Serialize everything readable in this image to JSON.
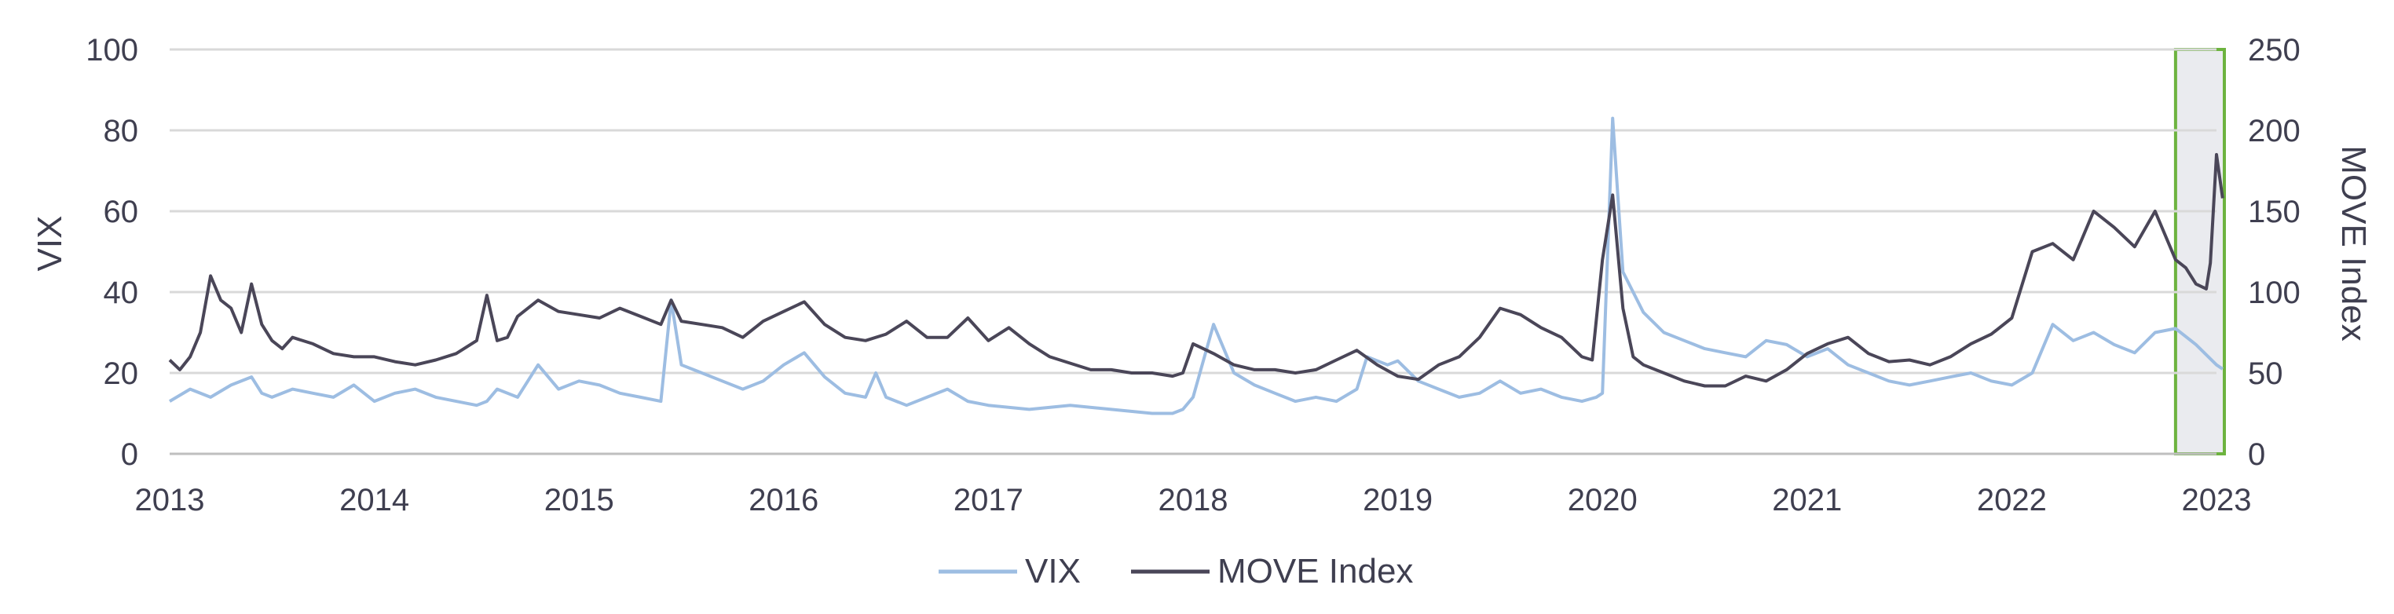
{
  "chart_data": {
    "type": "line",
    "title": "",
    "xlabel": "",
    "ylabel": "VIX",
    "y2label": "MOVE Index",
    "xlim": [
      2013,
      2023
    ],
    "ylim": [
      0,
      100
    ],
    "y2lim": [
      0,
      250
    ],
    "x_ticks": [
      "2013",
      "2014",
      "2015",
      "2016",
      "2017",
      "2018",
      "2019",
      "2020",
      "2021",
      "2022",
      "2023"
    ],
    "y_ticks": [
      "0",
      "20",
      "40",
      "60",
      "80",
      "100"
    ],
    "y2_ticks": [
      "0",
      "50",
      "100",
      "150",
      "200",
      "250"
    ],
    "grid": true,
    "legend_position": "bottom",
    "highlight": {
      "from": 2022.8,
      "to": 2023.05,
      "fill": "#eaebef",
      "stroke": "#6db33f"
    },
    "series": [
      {
        "name": "VIX",
        "axis": "left",
        "color": "#9dbde2",
        "x": [
          2013.0,
          2013.1,
          2013.2,
          2013.3,
          2013.4,
          2013.45,
          2013.5,
          2013.6,
          2013.7,
          2013.8,
          2013.9,
          2014.0,
          2014.1,
          2014.2,
          2014.3,
          2014.4,
          2014.5,
          2014.55,
          2014.6,
          2014.7,
          2014.8,
          2014.9,
          2015.0,
          2015.1,
          2015.2,
          2015.3,
          2015.4,
          2015.45,
          2015.5,
          2015.6,
          2015.7,
          2015.8,
          2015.9,
          2016.0,
          2016.1,
          2016.2,
          2016.3,
          2016.4,
          2016.45,
          2016.5,
          2016.6,
          2016.7,
          2016.8,
          2016.9,
          2017.0,
          2017.2,
          2017.4,
          2017.6,
          2017.8,
          2017.9,
          2017.95,
          2018.0,
          2018.1,
          2018.2,
          2018.3,
          2018.4,
          2018.5,
          2018.6,
          2018.7,
          2018.8,
          2018.85,
          2018.95,
          2019.0,
          2019.1,
          2019.2,
          2019.3,
          2019.4,
          2019.5,
          2019.6,
          2019.7,
          2019.8,
          2019.9,
          2019.97,
          2020.0,
          2020.05,
          2020.1,
          2020.2,
          2020.3,
          2020.4,
          2020.5,
          2020.6,
          2020.7,
          2020.8,
          2020.9,
          2021.0,
          2021.1,
          2021.2,
          2021.3,
          2021.4,
          2021.5,
          2021.6,
          2021.7,
          2021.8,
          2021.9,
          2022.0,
          2022.1,
          2022.2,
          2022.3,
          2022.4,
          2022.5,
          2022.6,
          2022.7,
          2022.8,
          2022.9,
          2023.0,
          2023.03
        ],
        "y": [
          13,
          16,
          14,
          17,
          19,
          15,
          14,
          16,
          15,
          14,
          17,
          13,
          15,
          16,
          14,
          13,
          12,
          13,
          16,
          14,
          22,
          16,
          18,
          17,
          15,
          14,
          13,
          38,
          22,
          20,
          18,
          16,
          18,
          22,
          25,
          19,
          15,
          14,
          20,
          14,
          12,
          14,
          16,
          13,
          12,
          11,
          12,
          11,
          10,
          10,
          11,
          14,
          32,
          20,
          17,
          15,
          13,
          14,
          13,
          16,
          24,
          22,
          23,
          18,
          16,
          14,
          15,
          18,
          15,
          16,
          14,
          13,
          14,
          15,
          83,
          45,
          35,
          30,
          28,
          26,
          25,
          24,
          28,
          27,
          24,
          26,
          22,
          20,
          18,
          17,
          18,
          19,
          20,
          18,
          17,
          20,
          32,
          28,
          30,
          27,
          25,
          30,
          31,
          27,
          22,
          21
        ]
      },
      {
        "name": "MOVE Index",
        "axis": "right",
        "color": "#4a4658",
        "x": [
          2013.0,
          2013.05,
          2013.1,
          2013.15,
          2013.2,
          2013.25,
          2013.3,
          2013.35,
          2013.4,
          2013.45,
          2013.5,
          2013.55,
          2013.6,
          2013.7,
          2013.8,
          2013.9,
          2014.0,
          2014.1,
          2014.2,
          2014.3,
          2014.4,
          2014.5,
          2014.55,
          2014.6,
          2014.65,
          2014.7,
          2014.8,
          2014.9,
          2015.0,
          2015.1,
          2015.2,
          2015.3,
          2015.4,
          2015.45,
          2015.5,
          2015.6,
          2015.7,
          2015.8,
          2015.9,
          2016.0,
          2016.1,
          2016.2,
          2016.3,
          2016.4,
          2016.5,
          2016.6,
          2016.7,
          2016.8,
          2016.9,
          2017.0,
          2017.1,
          2017.2,
          2017.3,
          2017.4,
          2017.5,
          2017.6,
          2017.7,
          2017.8,
          2017.9,
          2017.95,
          2018.0,
          2018.1,
          2018.2,
          2018.3,
          2018.4,
          2018.5,
          2018.6,
          2018.7,
          2018.8,
          2018.9,
          2019.0,
          2019.1,
          2019.2,
          2019.3,
          2019.4,
          2019.5,
          2019.6,
          2019.7,
          2019.8,
          2019.9,
          2019.95,
          2020.0,
          2020.05,
          2020.1,
          2020.15,
          2020.2,
          2020.3,
          2020.4,
          2020.5,
          2020.6,
          2020.7,
          2020.8,
          2020.9,
          2021.0,
          2021.1,
          2021.2,
          2021.3,
          2021.4,
          2021.5,
          2021.6,
          2021.7,
          2021.8,
          2021.9,
          2022.0,
          2022.1,
          2022.2,
          2022.3,
          2022.4,
          2022.5,
          2022.6,
          2022.7,
          2022.8,
          2022.85,
          2022.9,
          2022.95,
          2022.97,
          2023.0,
          2023.03
        ],
        "y": [
          58,
          52,
          60,
          75,
          110,
          95,
          90,
          75,
          105,
          80,
          70,
          65,
          72,
          68,
          62,
          60,
          60,
          57,
          55,
          58,
          62,
          70,
          98,
          70,
          72,
          85,
          95,
          88,
          86,
          84,
          90,
          85,
          80,
          95,
          82,
          80,
          78,
          72,
          82,
          88,
          94,
          80,
          72,
          70,
          74,
          82,
          72,
          72,
          84,
          70,
          78,
          68,
          60,
          56,
          52,
          52,
          50,
          50,
          48,
          50,
          68,
          62,
          55,
          52,
          52,
          50,
          52,
          58,
          64,
          55,
          48,
          46,
          55,
          60,
          72,
          90,
          86,
          78,
          72,
          60,
          58,
          120,
          160,
          90,
          60,
          55,
          50,
          45,
          42,
          42,
          48,
          45,
          52,
          62,
          68,
          72,
          62,
          57,
          58,
          55,
          60,
          68,
          74,
          84,
          125,
          130,
          120,
          150,
          140,
          128,
          150,
          120,
          115,
          105,
          102,
          118,
          185,
          158
        ]
      }
    ]
  }
}
